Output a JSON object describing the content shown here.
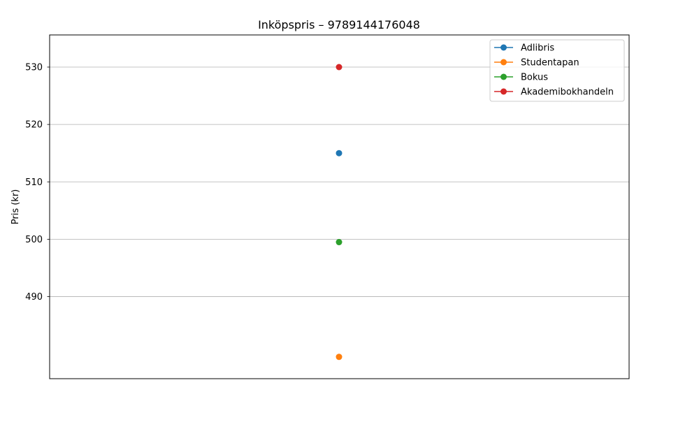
{
  "chart_data": {
    "type": "line",
    "title": "Inköpspris – 9789144176048",
    "xlabel": "",
    "ylabel": "Pris (kr)",
    "ylim": [
      475.7,
      535.6
    ],
    "yticks": [
      490,
      500,
      510,
      520,
      530
    ],
    "xticks": [],
    "grid": "horizontal",
    "legend_position": "top-right",
    "x": [
      0
    ],
    "series": [
      {
        "name": "Adlibris",
        "color": "#1f77b4",
        "values": [
          515
        ]
      },
      {
        "name": "Studentapan",
        "color": "#ff7f0e",
        "values": [
          479.5
        ]
      },
      {
        "name": "Bokus",
        "color": "#2ca02c",
        "values": [
          499.5
        ]
      },
      {
        "name": "Akademibokhandeln",
        "color": "#d62728",
        "values": [
          530
        ]
      }
    ]
  }
}
